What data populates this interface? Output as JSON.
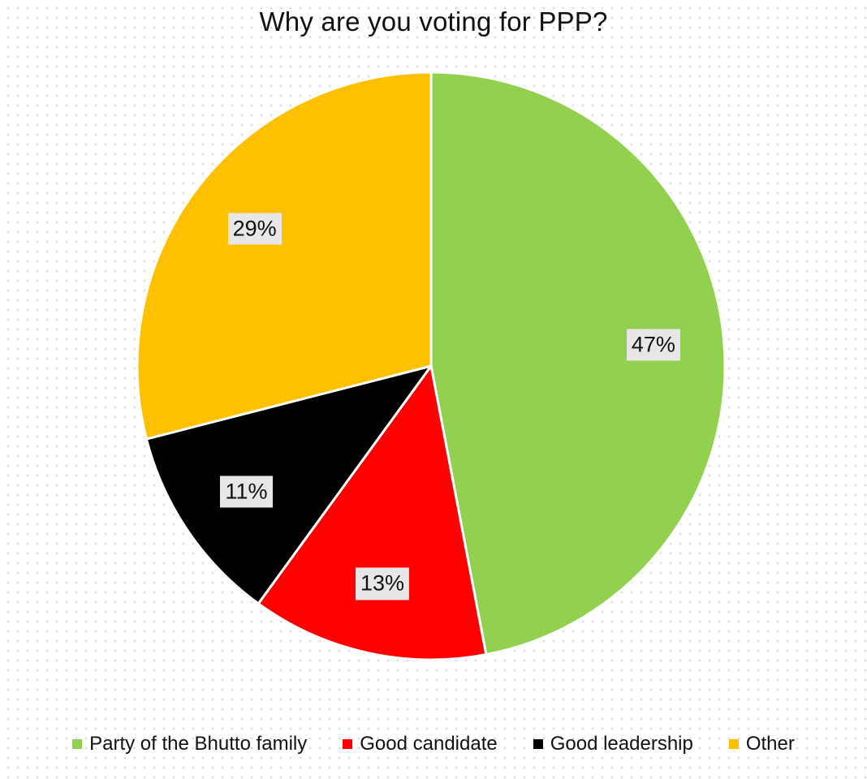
{
  "chart_data": {
    "type": "pie",
    "title": "Why are you voting for PPP?",
    "categories": [
      "Party of the Bhutto family",
      "Good candidate",
      "Good leadership",
      "Other"
    ],
    "values": [
      47,
      13,
      11,
      29
    ],
    "labels": [
      "47%",
      "13%",
      "11%",
      "29%"
    ],
    "colors": [
      "#92d050",
      "#ff0000",
      "#000000",
      "#ffc000"
    ],
    "start_angle_deg": 0,
    "direction": "clockwise",
    "legend": "bottom",
    "grid": false
  }
}
